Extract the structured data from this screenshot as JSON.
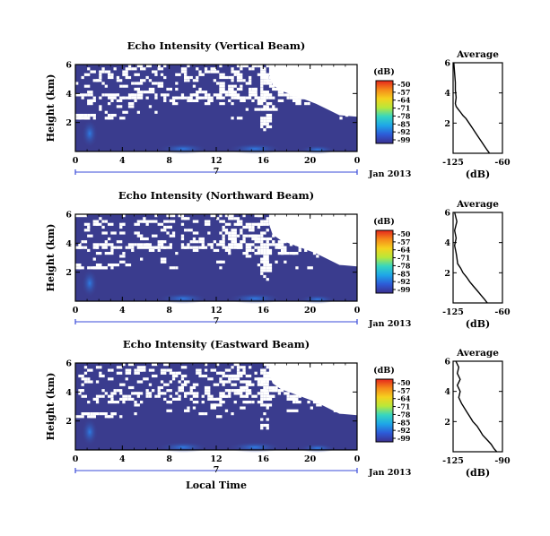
{
  "chart_data": [
    {
      "type": "heatmap",
      "title": "Echo Intensity (Vertical Beam)",
      "ylabel": "Height (km)",
      "x_ticks": [
        "0",
        "4",
        "8",
        "12",
        "16",
        "20",
        "0"
      ],
      "y_ticks": [
        "6",
        "4",
        "2"
      ],
      "xlim": [
        0,
        24
      ],
      "ylim": [
        0,
        6
      ],
      "colorbar_label": "(dB)",
      "colorbar_ticks": [
        "-50",
        "-57",
        "-64",
        "-71",
        "-78",
        "-85",
        "-92",
        "-99"
      ],
      "date_marker": "7",
      "date_label": "Jan 2013",
      "profile": {
        "title": "Average",
        "xlabel": "(dB)",
        "x_ticks": [
          "-125",
          "-60"
        ],
        "y_ticks": [
          "6",
          "4",
          "2"
        ],
        "xlim": [
          -125,
          -60
        ],
        "points": [
          [
            -124,
            6
          ],
          [
            -123,
            5.3
          ],
          [
            -122,
            4.7
          ],
          [
            -122,
            4.2
          ],
          [
            -121,
            3.7
          ],
          [
            -122,
            3.3
          ],
          [
            -121,
            3.1
          ],
          [
            -118,
            2.9
          ],
          [
            -115,
            2.7
          ],
          [
            -112,
            2.5
          ],
          [
            -108,
            2.3
          ],
          [
            -104,
            2.0
          ],
          [
            -100,
            1.7
          ],
          [
            -96,
            1.4
          ],
          [
            -92,
            1.1
          ],
          [
            -88,
            0.8
          ],
          [
            -84,
            0.5
          ],
          [
            -80,
            0.2
          ],
          [
            -77,
            0
          ]
        ]
      }
    },
    {
      "type": "heatmap",
      "title": "Echo Intensity (Northward Beam)",
      "ylabel": "Height (km)",
      "x_ticks": [
        "0",
        "4",
        "8",
        "12",
        "16",
        "20",
        "0"
      ],
      "y_ticks": [
        "6",
        "4",
        "2"
      ],
      "xlim": [
        0,
        24
      ],
      "ylim": [
        0,
        6
      ],
      "colorbar_label": "(dB)",
      "colorbar_ticks": [
        "-50",
        "-57",
        "-64",
        "-71",
        "-78",
        "-85",
        "-92",
        "-99"
      ],
      "date_marker": "7",
      "date_label": "Jan 2013",
      "profile": {
        "title": "Average",
        "xlabel": "(dB)",
        "x_ticks": [
          "-125",
          "-60"
        ],
        "y_ticks": [
          "6",
          "4",
          "2"
        ],
        "xlim": [
          -125,
          -60
        ],
        "points": [
          [
            -123,
            6
          ],
          [
            -120,
            5.4
          ],
          [
            -123,
            4.8
          ],
          [
            -121,
            4.3
          ],
          [
            -123,
            3.8
          ],
          [
            -121,
            3.3
          ],
          [
            -120,
            3.0
          ],
          [
            -119,
            2.6
          ],
          [
            -115,
            2.3
          ],
          [
            -112,
            2.0
          ],
          [
            -107,
            1.7
          ],
          [
            -103,
            1.4
          ],
          [
            -98,
            1.1
          ],
          [
            -93,
            0.8
          ],
          [
            -88,
            0.5
          ],
          [
            -83,
            0.2
          ],
          [
            -80,
            0
          ]
        ]
      }
    },
    {
      "type": "heatmap",
      "title": "Echo Intensity (Eastward Beam)",
      "ylabel": "Height (km)",
      "xlabel": "Local Time",
      "x_ticks": [
        "0",
        "4",
        "8",
        "12",
        "16",
        "20",
        "0"
      ],
      "y_ticks": [
        "6",
        "4",
        "2"
      ],
      "xlim": [
        0,
        24
      ],
      "ylim": [
        0,
        6
      ],
      "colorbar_label": "(dB)",
      "colorbar_ticks": [
        "-50",
        "-57",
        "-64",
        "-71",
        "-78",
        "-85",
        "-92",
        "-99"
      ],
      "date_marker": "7",
      "date_label": "Jan 2013",
      "profile": {
        "title": "Average",
        "xlabel": "(dB)",
        "x_ticks": [
          "-125",
          "-90"
        ],
        "y_ticks": [
          "6",
          "4",
          "2"
        ],
        "xlim": [
          -125,
          -90
        ],
        "points": [
          [
            -123,
            6
          ],
          [
            -121,
            5.6
          ],
          [
            -122,
            5.2
          ],
          [
            -120,
            4.8
          ],
          [
            -122,
            4.4
          ],
          [
            -120,
            4.0
          ],
          [
            -121,
            3.6
          ],
          [
            -119,
            3.2
          ],
          [
            -117,
            2.9
          ],
          [
            -115,
            2.6
          ],
          [
            -113,
            2.3
          ],
          [
            -111,
            2.0
          ],
          [
            -108,
            1.7
          ],
          [
            -106,
            1.4
          ],
          [
            -104,
            1.1
          ],
          [
            -101,
            0.8
          ],
          [
            -98,
            0.5
          ],
          [
            -96,
            0.2
          ],
          [
            -94,
            0
          ]
        ]
      }
    }
  ],
  "colors": {
    "background_fill": "#3a3c8e",
    "gap": "#ffffff",
    "colorbar": [
      "#3b2f8e",
      "#2d5bd8",
      "#1ea6e8",
      "#36d6c0",
      "#b8e83a",
      "#f5d21e",
      "#f58a1a",
      "#e5261c"
    ]
  }
}
